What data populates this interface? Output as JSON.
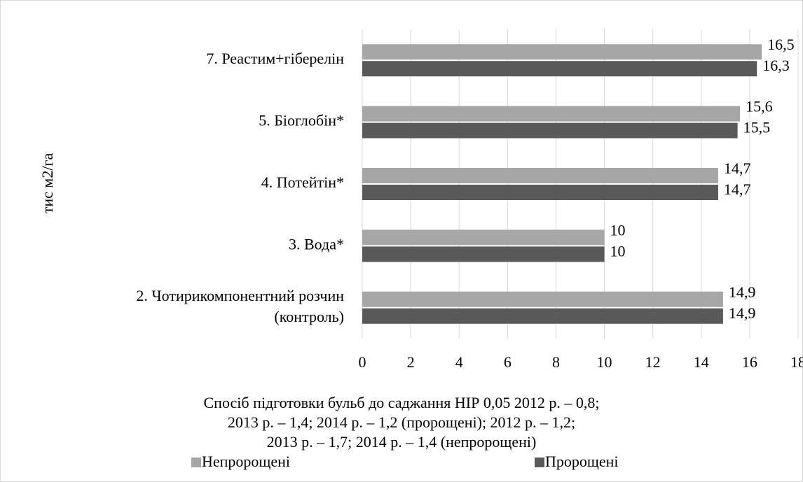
{
  "chart_data": {
    "type": "barh",
    "ylabel": "тис м2/га",
    "xlabel": [
      "Спосіб підготовки бульб до саджання НІР 0,05 2012 р. – 0,8;",
      "2013 р. – 1,4; 2014 р. – 1,2 (пророщені); 2012 р. – 1,2;",
      "2013 р. – 1,7; 2014 р. – 1,4 (непророщені)"
    ],
    "categories": [
      [
        "7. Реастим+гіберелін"
      ],
      [
        "5. Біоглобін*"
      ],
      [
        "4. Потейтін*"
      ],
      [
        "3. Вода*"
      ],
      [
        "2. Чотирикомпонентний розчин",
        "(контроль)"
      ]
    ],
    "series": [
      {
        "name": "Непророщені",
        "color": "#a6a6a6",
        "values": [
          16.5,
          15.6,
          14.7,
          10,
          14.9
        ],
        "value_labels": [
          "16,5",
          "15,6",
          "14,7",
          "10",
          "14,9"
        ]
      },
      {
        "name": "Пророщені",
        "color": "#595959",
        "values": [
          16.3,
          15.5,
          14.7,
          10,
          14.9
        ],
        "value_labels": [
          "16,3",
          "15,5",
          "14,7",
          "10",
          "14,9"
        ]
      }
    ],
    "xlim": [
      0,
      18
    ],
    "xticks": [
      0,
      2,
      4,
      6,
      8,
      10,
      12,
      14,
      16,
      18
    ],
    "grid": true,
    "legend": "bottom"
  }
}
